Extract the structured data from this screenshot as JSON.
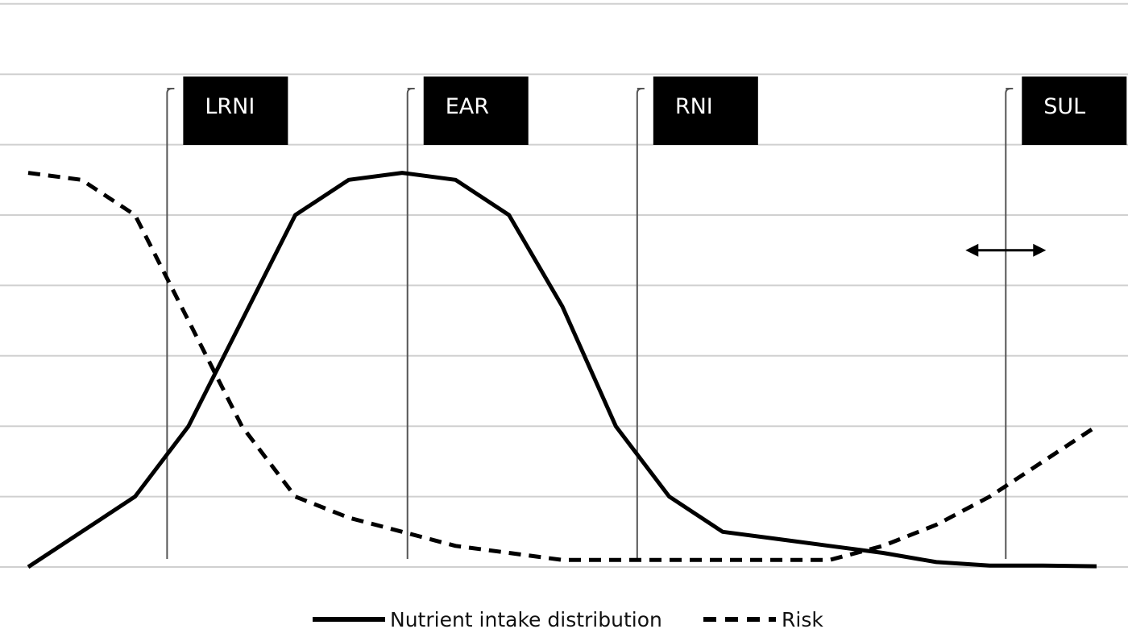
{
  "chart_data": {
    "type": "line",
    "x": [
      0,
      1,
      2,
      3,
      4,
      5,
      6,
      7,
      8,
      9,
      10,
      11,
      12,
      13,
      14,
      15,
      16,
      17,
      18,
      19,
      20
    ],
    "ylim": [
      0,
      7
    ],
    "grid": true,
    "legend_position": "bottom",
    "series": [
      {
        "name": "Nutrient intake distribution",
        "style": "solid",
        "values": [
          0,
          0.5,
          1,
          2,
          3.5,
          5,
          5.5,
          5.6,
          5.5,
          5,
          3.7,
          2,
          1,
          0.5,
          0.4,
          0.3,
          0.2,
          0.07,
          0.02,
          0.02,
          0.01
        ]
      },
      {
        "name": "Risk",
        "style": "dashed",
        "values": [
          5.6,
          5.5,
          5,
          3.5,
          2,
          1,
          0.7,
          0.5,
          0.3,
          0.2,
          0.1,
          0.1,
          0.1,
          0.1,
          0.1,
          0.1,
          0.3,
          0.6,
          1,
          1.5,
          2
        ]
      }
    ],
    "markers": [
      {
        "label": "LRNI",
        "x": 2.6
      },
      {
        "label": "EAR",
        "x": 7.1
      },
      {
        "label": "RNI",
        "x": 11.4
      },
      {
        "label": "SUL",
        "x": 18.3
      }
    ],
    "annotations": [
      {
        "type": "double-arrow",
        "at_marker": "SUL",
        "y": 4.5
      }
    ],
    "colors": {
      "line": "#000000",
      "grid": "#d0d0d0",
      "marker": "#555555",
      "label_bg": "#000000",
      "label_text": "#ffffff"
    }
  }
}
